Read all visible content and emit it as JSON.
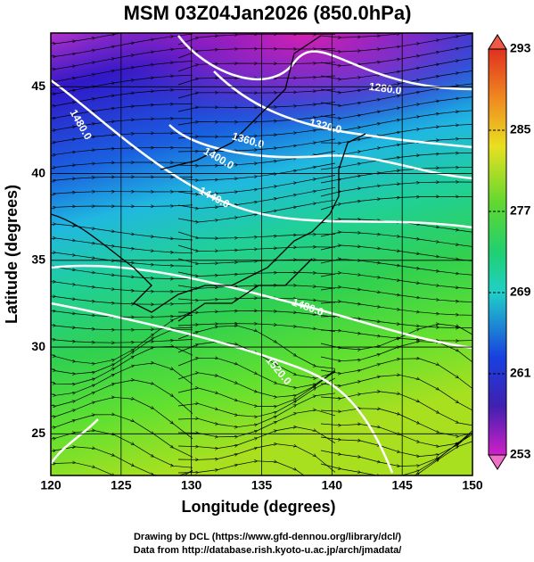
{
  "title": "MSM 03Z04Jan2026 (850.0hPa)",
  "x_axis": {
    "label": "Longitude (degrees)",
    "lim": [
      120,
      150
    ],
    "ticks": [
      120,
      125,
      130,
      135,
      140,
      145,
      150
    ]
  },
  "y_axis": {
    "label": "Latitude  (degrees)",
    "lim": [
      22.6,
      48.1
    ],
    "ticks": [
      25,
      30,
      35,
      40,
      45
    ]
  },
  "colorbar": {
    "lim": [
      253,
      293
    ],
    "ticks": [
      253,
      261,
      269,
      277,
      285,
      293
    ]
  },
  "contour_labels": [
    "1280.0",
    "1320.0",
    "1360.0",
    "1400.0",
    "1440.0",
    "1480.0",
    "1480.0",
    "1520.0"
  ],
  "credits": [
    "Drawing by DCL (https://www.gfd-dennou.org/library/dcl/)",
    "Data from http://database.rish.kyoto-u.ac.jp/arch/jmadata/"
  ]
}
